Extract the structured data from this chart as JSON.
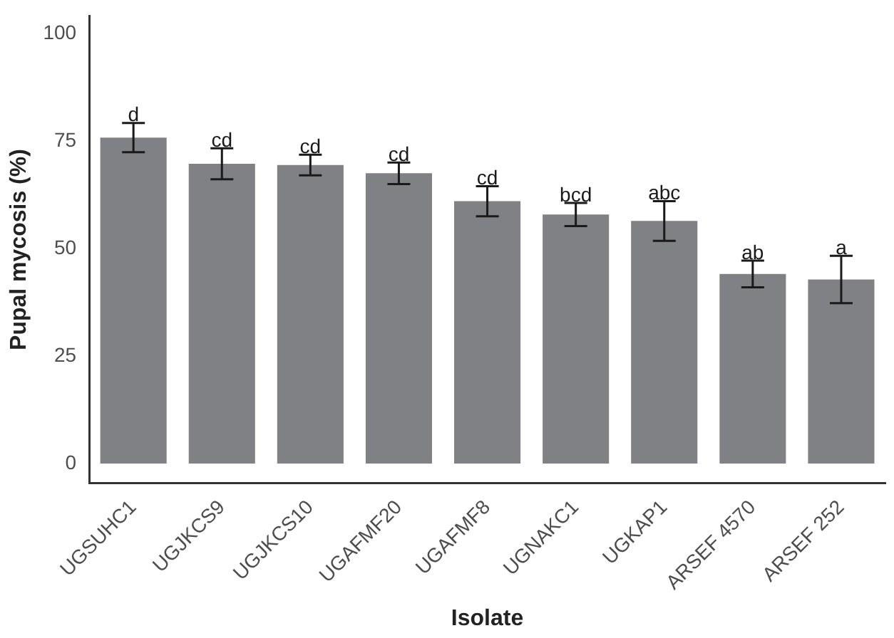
{
  "chart_data": {
    "type": "bar",
    "xlabel": "Isolate",
    "ylabel": "Pupal mycosis (%)",
    "categories": [
      "UGSUHC1",
      "UGJKCS9",
      "UGJKCS10",
      "UGAFMF20",
      "UGAFMF8",
      "UGNAKC1",
      "UGKAP1",
      "ARSEF 4570",
      "ARSEF 252"
    ],
    "values": [
      75.8,
      69.7,
      69.4,
      67.5,
      61.0,
      57.9,
      56.4,
      44.1,
      42.8
    ],
    "errors": [
      3.4,
      3.6,
      2.4,
      2.5,
      3.5,
      2.7,
      4.6,
      3.1,
      5.5
    ],
    "color": "#808184",
    "ylim": [
      -4.5,
      104
    ],
    "yticks": [
      0,
      25,
      50,
      75,
      100
    ],
    "grid": false,
    "legend": false,
    "annotations": [
      {
        "text": "d",
        "x": "UGSUHC1",
        "y": 79.2
      },
      {
        "text": "cd",
        "x": "UGJKCS9",
        "y": 73.3
      },
      {
        "text": "cd",
        "x": "UGJKCS10",
        "y": 71.8
      },
      {
        "text": "cd",
        "x": "UGAFMF20",
        "y": 70
      },
      {
        "text": "cd",
        "x": "UGAFMF8",
        "y": 64.5
      },
      {
        "text": "bcd",
        "x": "UGNAKC1",
        "y": 60.6
      },
      {
        "text": "abc",
        "x": "UGKAP1",
        "y": 61
      },
      {
        "text": "ab",
        "x": "ARSEF 4570",
        "y": 47.2
      },
      {
        "text": "a",
        "x": "ARSEF 252",
        "y": 48.3
      }
    ]
  }
}
